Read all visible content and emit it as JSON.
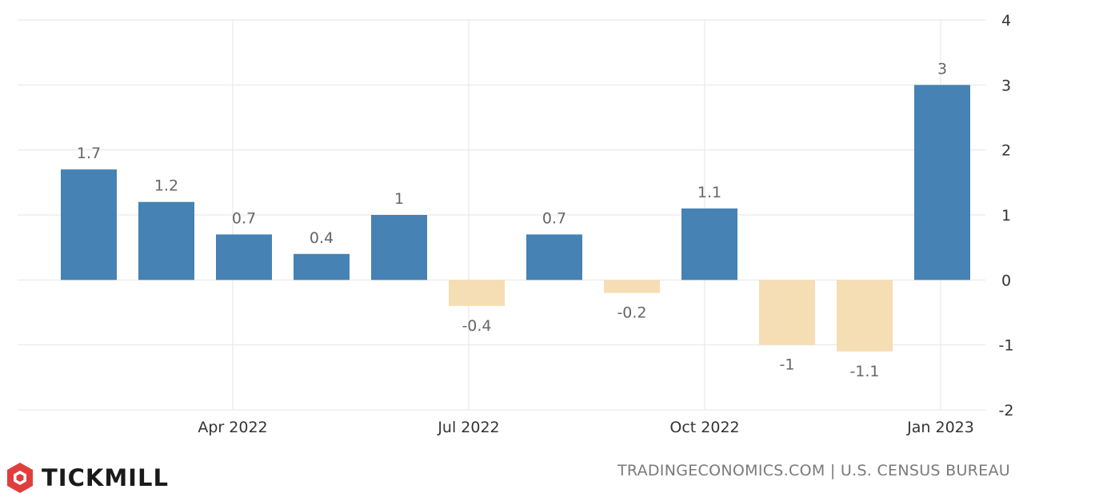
{
  "chart_data": {
    "type": "bar",
    "x": [
      "2022-02",
      "2022-03",
      "2022-04",
      "2022-05",
      "2022-06",
      "2022-07",
      "2022-08",
      "2022-09",
      "2022-10",
      "2022-11",
      "2022-12",
      "2023-01"
    ],
    "values": [
      1.7,
      1.2,
      0.7,
      0.4,
      1,
      -0.4,
      0.7,
      -0.2,
      1.1,
      -1,
      -1.1,
      3
    ],
    "data_labels": [
      "1.7",
      "1.2",
      "0.7",
      "0.4",
      "1",
      "-0.4",
      "0.7",
      "-0.2",
      "1.1",
      "-1",
      "-1.1",
      "3"
    ],
    "x_tick_labels": [
      "Apr 2022",
      "Jul 2022",
      "Oct 2022",
      "Jan 2023"
    ],
    "y_ticks": [
      4,
      3,
      2,
      1,
      0,
      -1,
      -2
    ],
    "ylim": [
      -2,
      4
    ],
    "y_axis_side": "right",
    "grid": true,
    "positive_color": "#4682b4",
    "negative_color": "#f5deb3"
  },
  "branding": {
    "logo_text": "TICKMILL",
    "logo_color": "#e23d3d"
  },
  "source": "TRADINGECONOMICS.COM | U.S. CENSUS BUREAU"
}
